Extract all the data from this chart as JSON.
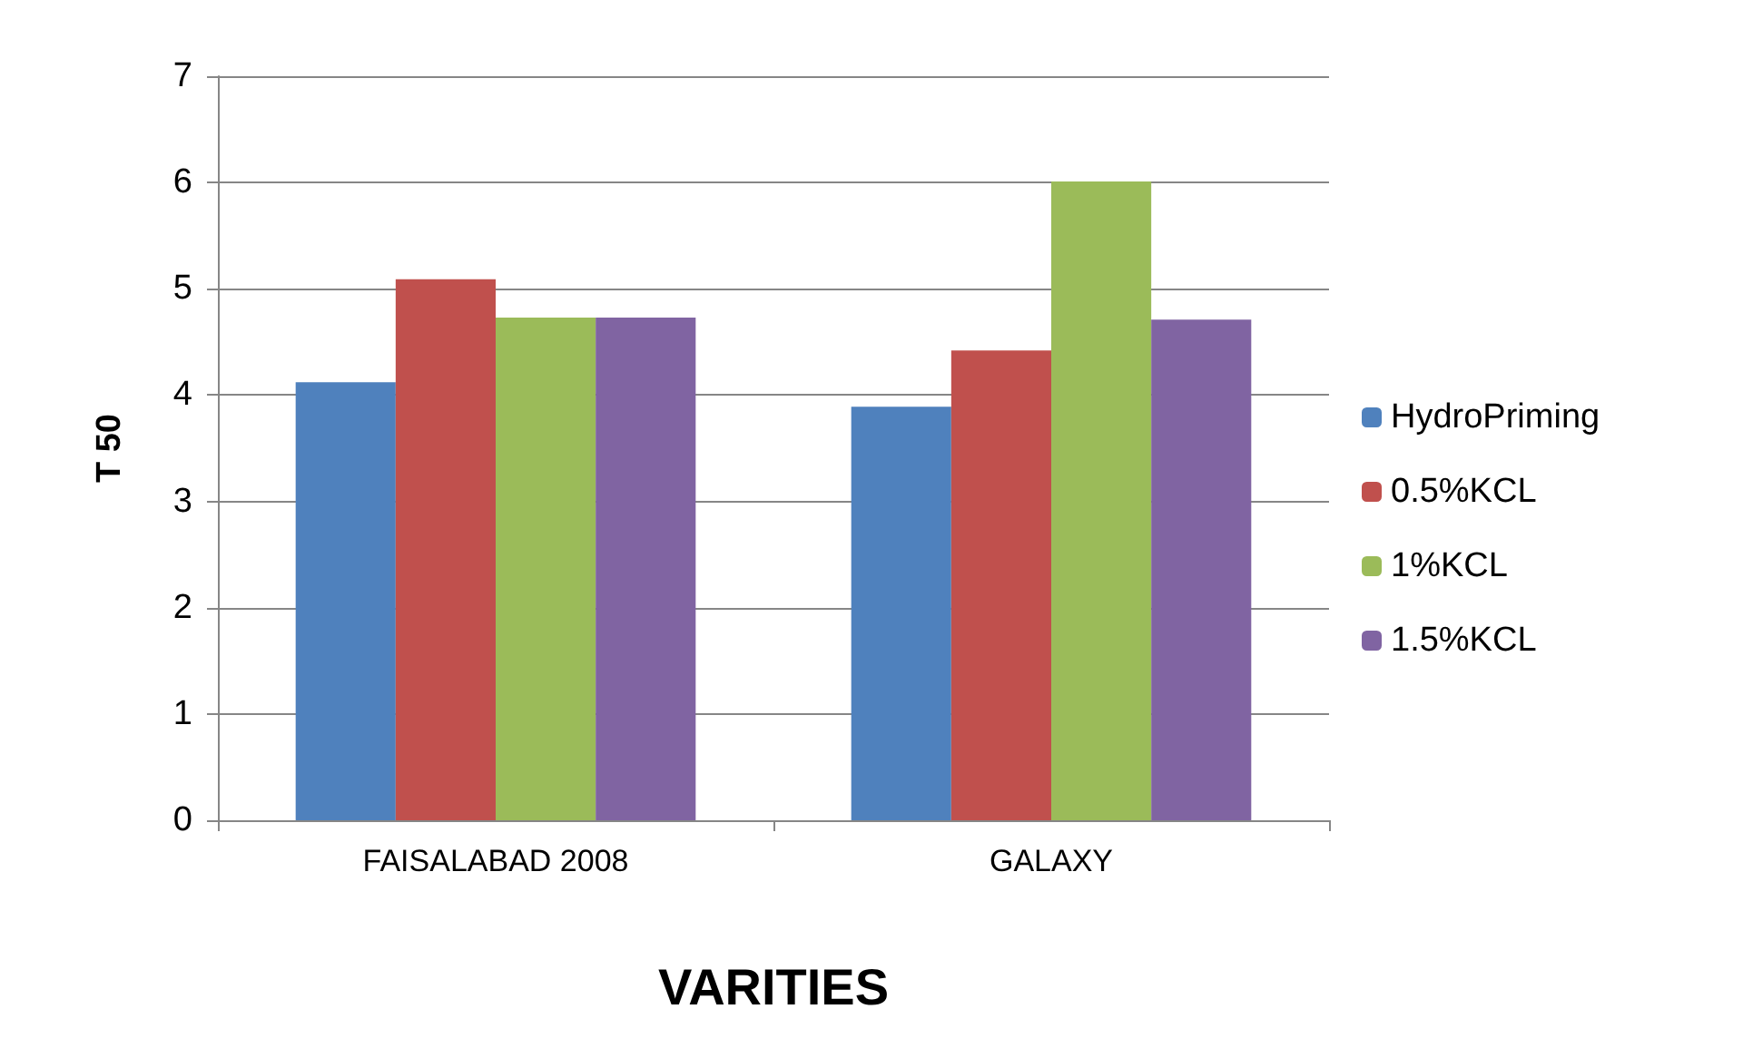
{
  "chart_data": {
    "type": "bar",
    "xlabel": "VARITIES",
    "ylabel": "T 50",
    "categories": [
      "FAISALABAD 2008",
      "GALAXY"
    ],
    "series": [
      {
        "name": "HydroPriming",
        "color": "#4f81bd",
        "values": [
          4.12,
          3.89
        ]
      },
      {
        "name": "0.5%KCL",
        "color": "#c0504d",
        "values": [
          5.09,
          4.42
        ]
      },
      {
        "name": "1%KCL",
        "color": "#9bbb59",
        "values": [
          4.73,
          6.01
        ]
      },
      {
        "name": "1.5%KCL",
        "color": "#8064a2",
        "values": [
          4.73,
          4.71
        ]
      }
    ],
    "ylim": [
      0,
      7
    ],
    "yticks": [
      0,
      1,
      2,
      3,
      4,
      5,
      6,
      7
    ],
    "grid": "y",
    "legend": "right"
  }
}
